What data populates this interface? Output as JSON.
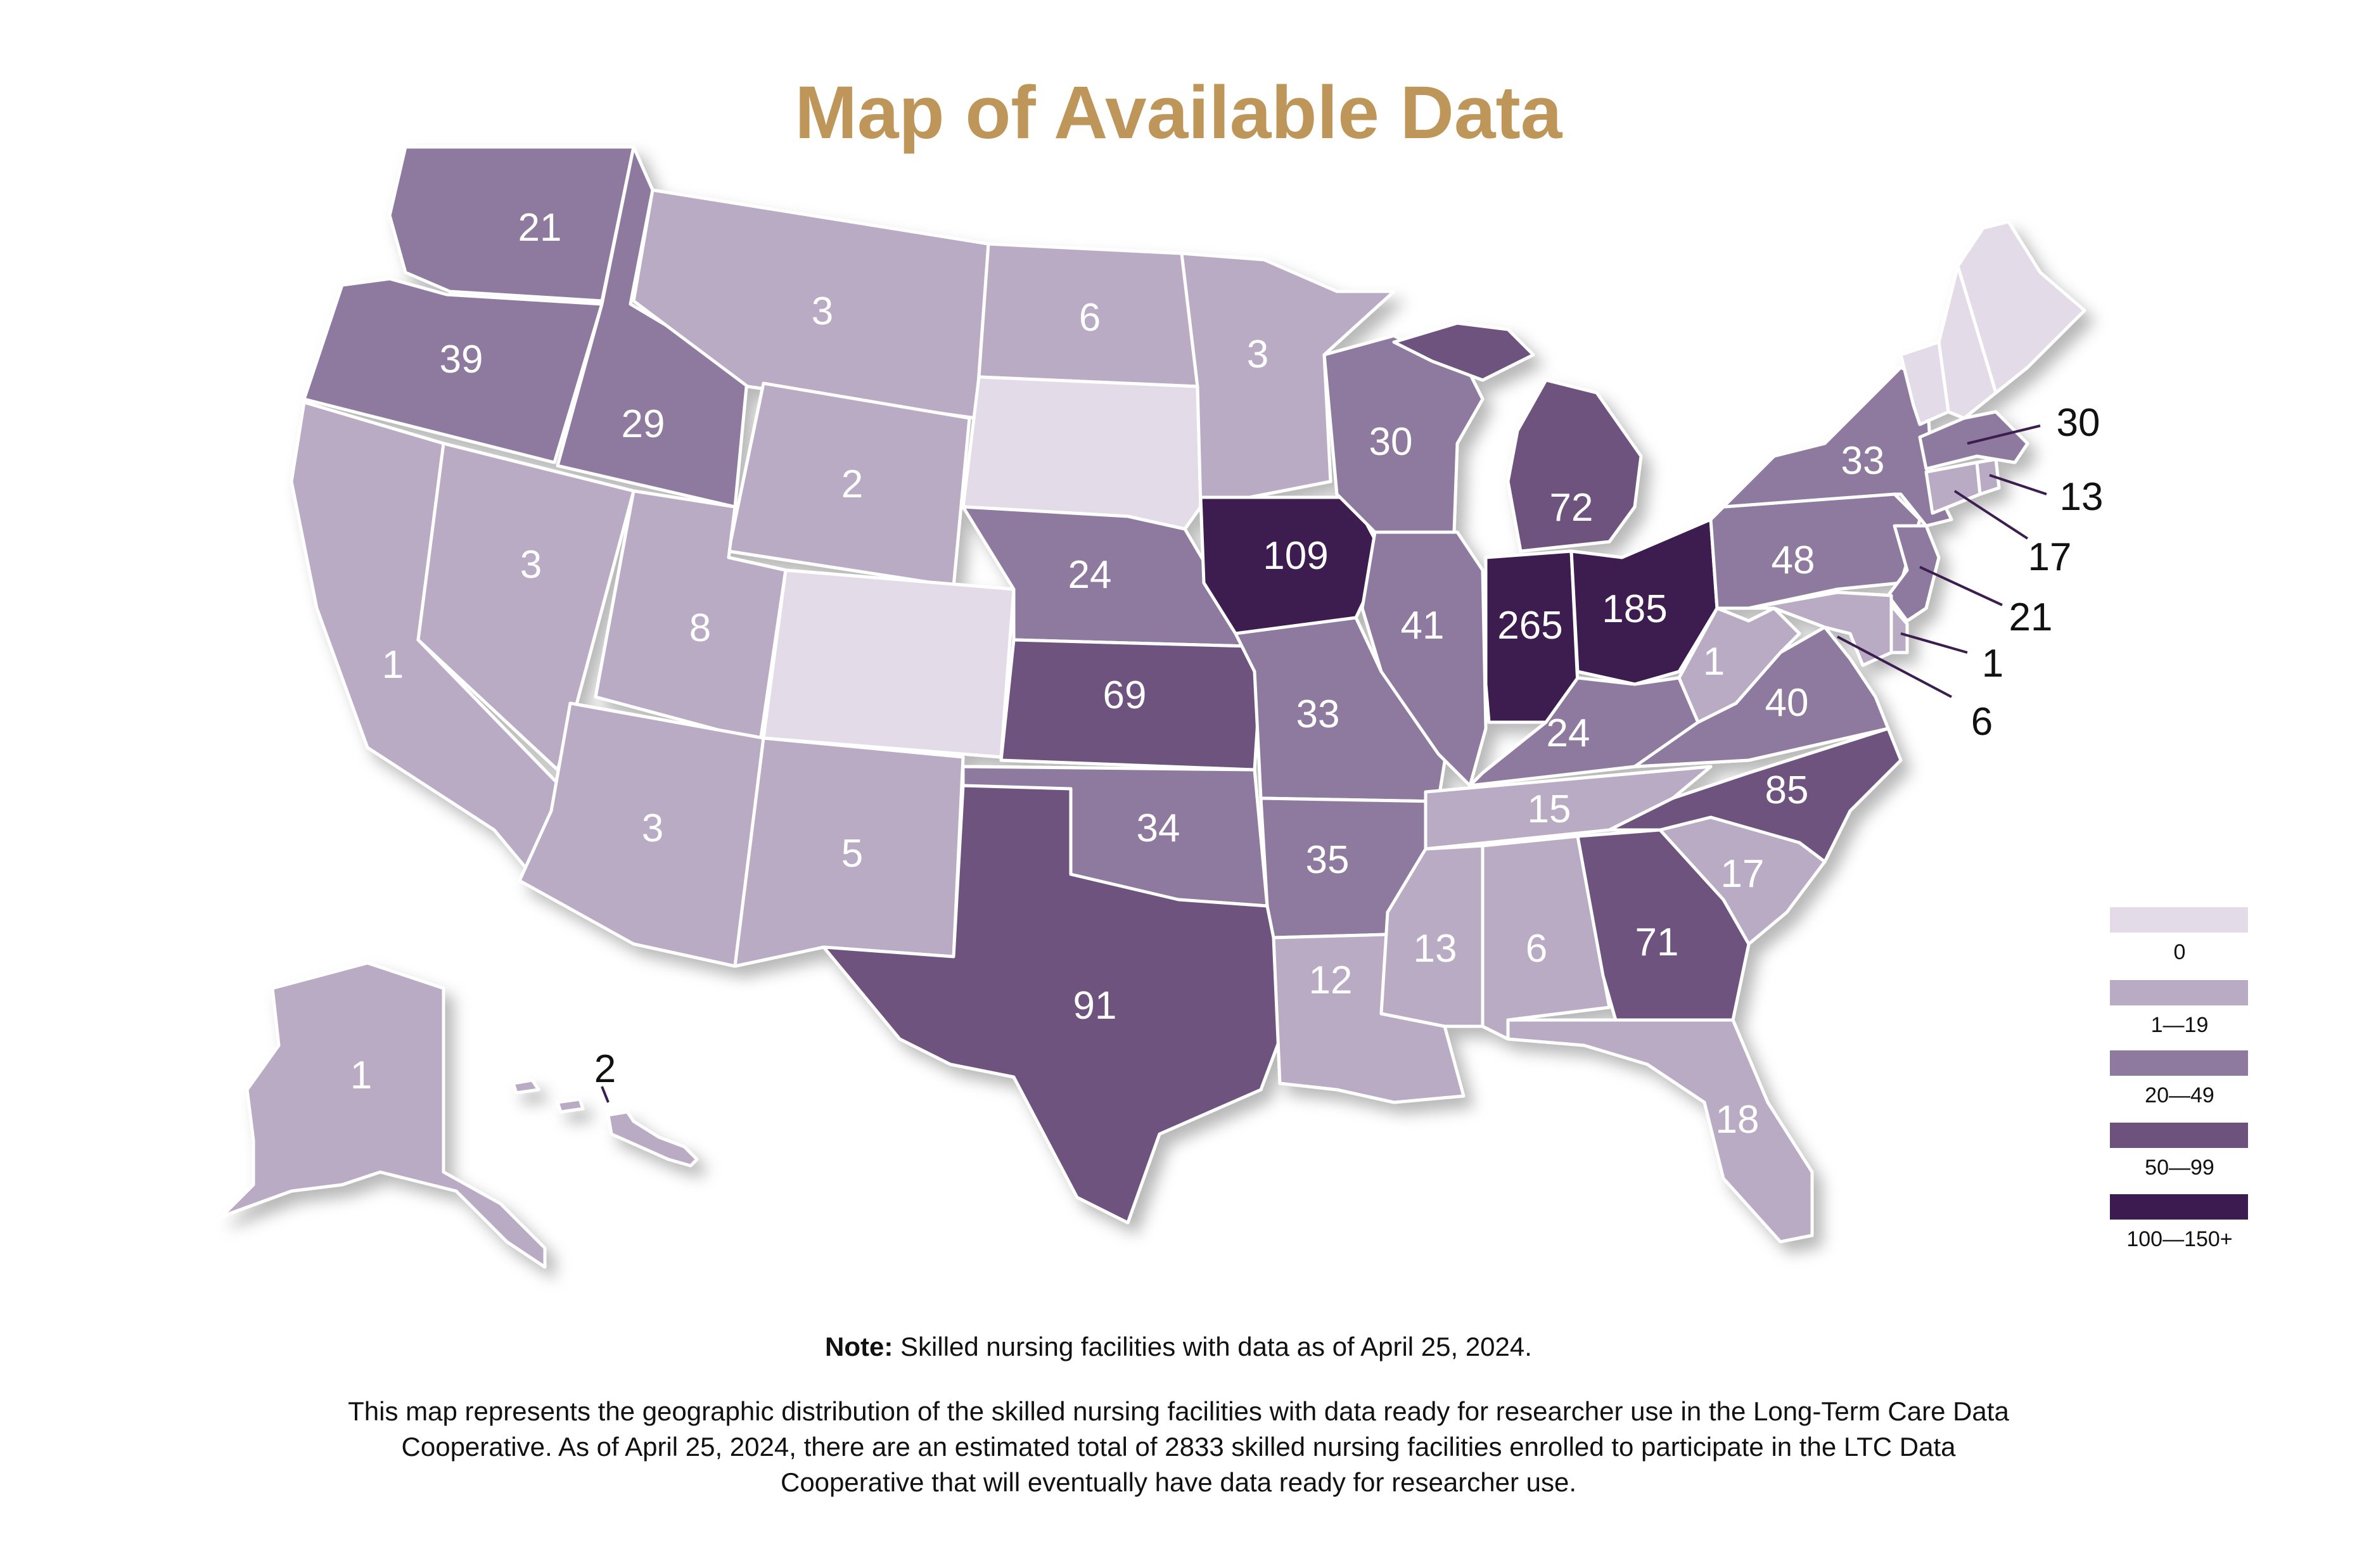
{
  "title": "Map of Available Data",
  "colors": {
    "bin_0": "#e3dce8",
    "bin_1_19": "#b9abc4",
    "bin_20_49": "#8f7a9f",
    "bin_50_99": "#6d527e",
    "bin_100_plus": "#3c1b50",
    "title": "#bf9659"
  },
  "legend": [
    {
      "label": "0",
      "color": "#e3dce8"
    },
    {
      "label": "1—19",
      "color": "#b9abc4"
    },
    {
      "label": "20—49",
      "color": "#8f7a9f"
    },
    {
      "label": "50—99",
      "color": "#6d527e"
    },
    {
      "label": "100—150+",
      "color": "#3c1b50"
    }
  ],
  "states": [
    {
      "id": "WA",
      "value": "21",
      "color": "#8f7a9f"
    },
    {
      "id": "OR",
      "value": "39",
      "color": "#8f7a9f"
    },
    {
      "id": "CA",
      "value": "1",
      "color": "#b9abc4"
    },
    {
      "id": "NV",
      "value": "3",
      "color": "#b9abc4"
    },
    {
      "id": "ID",
      "value": "29",
      "color": "#8f7a9f"
    },
    {
      "id": "MT",
      "value": "3",
      "color": "#b9abc4"
    },
    {
      "id": "WY",
      "value": "2",
      "color": "#b9abc4"
    },
    {
      "id": "UT",
      "value": "8",
      "color": "#b9abc4"
    },
    {
      "id": "AZ",
      "value": "3",
      "color": "#b9abc4"
    },
    {
      "id": "CO",
      "value": "",
      "color": "#e3dce8"
    },
    {
      "id": "NM",
      "value": "5",
      "color": "#b9abc4"
    },
    {
      "id": "ND",
      "value": "6",
      "color": "#b9abc4"
    },
    {
      "id": "SD",
      "value": "",
      "color": "#e3dce8"
    },
    {
      "id": "NE",
      "value": "24",
      "color": "#8f7a9f"
    },
    {
      "id": "KS",
      "value": "69",
      "color": "#6d527e"
    },
    {
      "id": "OK",
      "value": "34",
      "color": "#8f7a9f"
    },
    {
      "id": "TX",
      "value": "91",
      "color": "#6d527e"
    },
    {
      "id": "MN",
      "value": "3",
      "color": "#b9abc4"
    },
    {
      "id": "IA",
      "value": "109",
      "color": "#3c1b50"
    },
    {
      "id": "MO",
      "value": "33",
      "color": "#8f7a9f"
    },
    {
      "id": "AR",
      "value": "35",
      "color": "#8f7a9f"
    },
    {
      "id": "LA",
      "value": "12",
      "color": "#b9abc4"
    },
    {
      "id": "WI",
      "value": "30",
      "color": "#8f7a9f"
    },
    {
      "id": "IL",
      "value": "41",
      "color": "#8f7a9f"
    },
    {
      "id": "MI",
      "value": "72",
      "color": "#6d527e"
    },
    {
      "id": "IN",
      "value": "265",
      "color": "#3c1b50"
    },
    {
      "id": "OH",
      "value": "185",
      "color": "#3c1b50"
    },
    {
      "id": "KY",
      "value": "24",
      "color": "#8f7a9f"
    },
    {
      "id": "TN",
      "value": "15",
      "color": "#b9abc4"
    },
    {
      "id": "MS",
      "value": "13",
      "color": "#b9abc4"
    },
    {
      "id": "AL",
      "value": "6",
      "color": "#b9abc4"
    },
    {
      "id": "GA",
      "value": "71",
      "color": "#6d527e"
    },
    {
      "id": "FL",
      "value": "18",
      "color": "#b9abc4"
    },
    {
      "id": "SC",
      "value": "17",
      "color": "#b9abc4"
    },
    {
      "id": "NC",
      "value": "85",
      "color": "#6d527e"
    },
    {
      "id": "VA",
      "value": "40",
      "color": "#8f7a9f"
    },
    {
      "id": "WV",
      "value": "1",
      "color": "#b9abc4"
    },
    {
      "id": "PA",
      "value": "48",
      "color": "#8f7a9f"
    },
    {
      "id": "NY",
      "value": "33",
      "color": "#8f7a9f"
    },
    {
      "id": "ME",
      "value": "",
      "color": "#e3dce8"
    },
    {
      "id": "NH",
      "value": "",
      "color": "#e3dce8"
    },
    {
      "id": "VT",
      "value": "",
      "color": "#e3dce8"
    },
    {
      "id": "MA",
      "value": "30",
      "color": "#8f7a9f"
    },
    {
      "id": "RI",
      "value": "13",
      "color": "#b9abc4"
    },
    {
      "id": "CT",
      "value": "17",
      "color": "#b9abc4"
    },
    {
      "id": "NJ",
      "value": "21",
      "color": "#8f7a9f"
    },
    {
      "id": "DE",
      "value": "1",
      "color": "#b9abc4"
    },
    {
      "id": "MD",
      "value": "6",
      "color": "#b9abc4"
    },
    {
      "id": "AK",
      "value": "1",
      "color": "#b9abc4"
    },
    {
      "id": "HI",
      "value": "2",
      "color": "#b9abc4"
    }
  ],
  "note_label": "Note:",
  "note_text": " Skilled nursing facilities with data as of April 25, 2024.",
  "description": "This map represents the geographic distribution of the skilled nursing facilities with data ready for researcher use in the Long-Term Care Data Cooperative. As of April 25, 2024, there are an estimated total of 2833 skilled nursing facilities enrolled to participate in the LTC Data Cooperative that will eventually have data ready for researcher use."
}
